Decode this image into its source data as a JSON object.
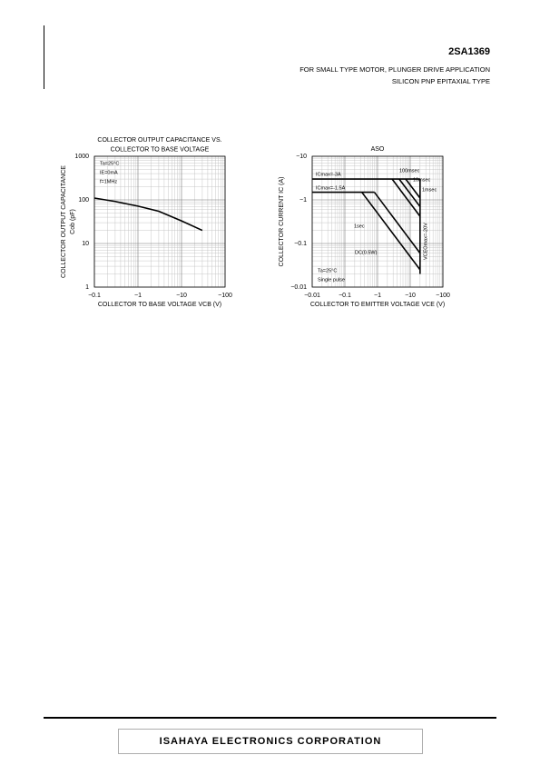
{
  "header": {
    "part": "2SA1369",
    "line1": "FOR SMALL TYPE MOTOR, PLUNGER DRIVE APPLICATION",
    "line2": "SILICON PNP EPITAXIAL TYPE"
  },
  "chart_data": [
    {
      "type": "line",
      "title": [
        "COLLECTOR OUTPUT CAPACITANCE VS.",
        "COLLECTOR TO BASE VOLTAGE"
      ],
      "ylabel": [
        "COLLECTOR OUTPUT CAPACITANCE",
        "Cob (pF)"
      ],
      "xlabel": "COLLECTOR TO BASE VOLTAGE VCB (V)",
      "xscale": "log",
      "yscale": "log",
      "grid": true,
      "minor_grid": true,
      "color": "#000000",
      "xlim": [
        -0.1,
        -100
      ],
      "xticks": [
        {
          "value": -0.1,
          "label": "−0.1"
        },
        {
          "value": -1,
          "label": "−1"
        },
        {
          "value": -10,
          "label": "−10"
        },
        {
          "value": -100,
          "label": "−100"
        }
      ],
      "ylim": [
        1,
        1000
      ],
      "yticks": [
        1,
        10,
        100,
        1000
      ],
      "annotations": [
        "Ta=25°C",
        "IE=0mA",
        "f=1MHz"
      ],
      "series": [
        {
          "x": [
            -0.1,
            -0.3,
            -1,
            -3,
            -10,
            -30
          ],
          "values": [
            110,
            92,
            72,
            55,
            33,
            20
          ]
        }
      ]
    },
    {
      "type": "line",
      "title": [
        "ASO"
      ],
      "ylabel": [
        "COLLECTOR CURRENT IC (A)"
      ],
      "xlabel": "COLLECTOR TO EMITTER VOLTAGE VCE (V)",
      "xscale": "log",
      "yscale": "log",
      "grid": true,
      "minor_grid": true,
      "color": "#000000",
      "xlim": [
        -0.01,
        -100
      ],
      "xticks": [
        {
          "value": -0.01,
          "label": "−0.01"
        },
        {
          "value": -0.1,
          "label": "−0.1"
        },
        {
          "value": -1,
          "label": "−1"
        },
        {
          "value": -10,
          "label": "−10"
        },
        {
          "value": -100,
          "label": "−100"
        }
      ],
      "ylim": [
        -0.01,
        -10
      ],
      "yticks": [
        {
          "value": -0.01,
          "label": "−0.01"
        },
        {
          "value": -0.1,
          "label": "−0.1"
        },
        {
          "value": -1,
          "label": "−1"
        },
        {
          "value": -10,
          "label": "−10"
        }
      ],
      "annotations": [
        "Ta=25°C",
        "Single pulse"
      ],
      "series": [
        {
          "name": "ICmax=-3A",
          "x": [
            -0.01,
            -20
          ],
          "values": [
            -3,
            -3
          ]
        },
        {
          "name": "ICmax=-1.5A",
          "x": [
            -0.01,
            -0.8
          ],
          "values": [
            -1.5,
            -1.5
          ]
        },
        {
          "name": "100msec",
          "x": [
            -2.8,
            -20
          ],
          "values": [
            -3,
            -0.42
          ]
        },
        {
          "name": "10msec",
          "x": [
            -4.6,
            -20
          ],
          "values": [
            -3,
            -0.7
          ]
        },
        {
          "name": "1msec",
          "x": [
            -7.3,
            -20
          ],
          "values": [
            -3,
            -1.1
          ]
        },
        {
          "name": "1sec",
          "x": [
            -0.8,
            -20
          ],
          "values": [
            -1.5,
            -0.06
          ]
        },
        {
          "name": "DC(0.5W)",
          "x": [
            -0.33,
            -20
          ],
          "values": [
            -1.5,
            -0.025
          ]
        },
        {
          "name": "VCEOmax=-20V",
          "x": [
            -20,
            -20
          ],
          "values": [
            -3,
            -0.02
          ]
        }
      ]
    }
  ],
  "footer": {
    "company": "ISAHAYA ELECTRONICS CORPORATION"
  }
}
